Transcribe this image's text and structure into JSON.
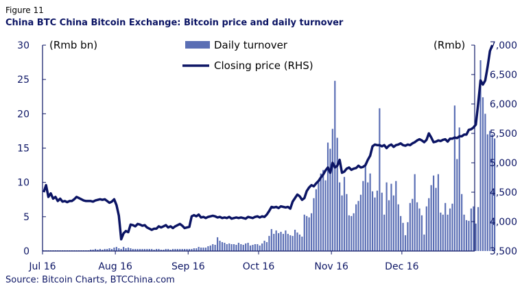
{
  "figure_label": "Figure 11",
  "title": "China BTC China Bitcoin Exchange: Bitcoin price and daily turnover",
  "source": "Source: Bitcoin Charts, BTCChina.com",
  "colors": {
    "bar": "#5a6eb4",
    "line": "#0b1464",
    "axis": "#0b1464"
  },
  "chart_data": {
    "type": "bar",
    "left_axis": {
      "unit_label": "(Rmb bn)",
      "ylim": [
        0,
        30
      ],
      "ticks": [
        0,
        5,
        10,
        15,
        20,
        25,
        30
      ],
      "tick_labels": [
        "0",
        "5",
        "10",
        "15",
        "20",
        "25",
        "30"
      ]
    },
    "right_axis": {
      "unit_label": "(Rmb)",
      "ylim": [
        3500,
        7000
      ],
      "ticks": [
        3500,
        4000,
        4500,
        5000,
        5500,
        6000,
        6500,
        7000
      ],
      "tick_labels": [
        "3,500",
        "4,000",
        "4,500",
        "5,000",
        "5,500",
        "6,000",
        "6,500",
        "7,000"
      ]
    },
    "x_axis": {
      "month_labels": [
        "Jul 16",
        "Aug 16",
        "Sep 16",
        "Oct 16",
        "Nov 16",
        "Dec 16"
      ],
      "month_start_day_index": [
        0,
        31,
        62,
        92,
        123,
        153
      ],
      "num_days": 184
    },
    "legend": {
      "placement": "top-center",
      "items": [
        "Daily turnover",
        "Closing price (RHS)"
      ]
    },
    "series": [
      {
        "name": "Daily turnover",
        "type": "bar",
        "axis": "left",
        "values": [
          0.1,
          0.1,
          0.1,
          0.1,
          0.1,
          0.1,
          0.1,
          0.1,
          0.1,
          0.1,
          0.1,
          0.1,
          0.1,
          0.1,
          0.1,
          0.1,
          0.1,
          0.1,
          0.1,
          0.1,
          0.2,
          0.2,
          0.3,
          0.2,
          0.3,
          0.2,
          0.3,
          0.3,
          0.4,
          0.3,
          0.5,
          0.6,
          0.4,
          0.3,
          0.6,
          0.4,
          0.5,
          0.4,
          0.3,
          0.3,
          0.3,
          0.3,
          0.3,
          0.3,
          0.3,
          0.3,
          0.3,
          0.2,
          0.3,
          0.3,
          0.2,
          0.2,
          0.3,
          0.3,
          0.2,
          0.3,
          0.3,
          0.3,
          0.3,
          0.3,
          0.3,
          0.3,
          0.3,
          0.3,
          0.4,
          0.4,
          0.6,
          0.5,
          0.5,
          0.5,
          0.7,
          0.8,
          1.0,
          0.9,
          2.0,
          1.5,
          1.3,
          1.2,
          1.0,
          1.1,
          1.0,
          1.0,
          0.9,
          1.2,
          1.0,
          0.9,
          1.1,
          1.2,
          0.8,
          0.9,
          1.0,
          1.0,
          0.8,
          1.1,
          1.5,
          1.3,
          2.2,
          3.2,
          2.5,
          3.0,
          2.6,
          2.8,
          2.5,
          3.0,
          2.5,
          2.3,
          2.2,
          3.1,
          2.7,
          2.4,
          2.1,
          5.3,
          5.1,
          4.9,
          5.5,
          7.7,
          9.0,
          10.0,
          11.3,
          11.8,
          10.3,
          15.8,
          14.9,
          17.8,
          24.8,
          16.5,
          10.0,
          8.1,
          10.8,
          8.3,
          5.2,
          5.1,
          5.5,
          6.8,
          7.3,
          8.2,
          10.2,
          12.8,
          10.0,
          11.3,
          8.7,
          7.8,
          8.8,
          20.8,
          8.5,
          5.3,
          10.0,
          7.4,
          9.8,
          8.1,
          10.2,
          6.8,
          5.1,
          4.1,
          2.3,
          4.2,
          7.0,
          7.6,
          11.2,
          7.1,
          6.2,
          5.2,
          2.4,
          6.5,
          7.7,
          9.6,
          11.0,
          9.2,
          11.2,
          5.6,
          5.3,
          7.0,
          5.3,
          6.2,
          6.9,
          21.2,
          13.4,
          18.0,
          8.3,
          5.3,
          4.5,
          4.4,
          6.2,
          6.5,
          4.0,
          6.4,
          27.8,
          22.4,
          20.0,
          17.0,
          17.5,
          17.0,
          16.4
        ]
      },
      {
        "name": "Closing price (RHS)",
        "type": "line",
        "axis": "right",
        "values": [
          4500,
          4620,
          4420,
          4480,
          4390,
          4420,
          4350,
          4390,
          4340,
          4350,
          4330,
          4350,
          4350,
          4380,
          4420,
          4400,
          4380,
          4360,
          4350,
          4350,
          4350,
          4340,
          4360,
          4370,
          4380,
          4370,
          4380,
          4350,
          4320,
          4340,
          4380,
          4280,
          4100,
          3700,
          3800,
          3840,
          3820,
          3950,
          3940,
          3920,
          3960,
          3950,
          3930,
          3940,
          3900,
          3880,
          3860,
          3880,
          3880,
          3920,
          3900,
          3920,
          3940,
          3900,
          3920,
          3890,
          3920,
          3940,
          3960,
          3930,
          3890,
          3900,
          3910,
          4090,
          4110,
          4090,
          4120,
          4070,
          4080,
          4060,
          4080,
          4090,
          4100,
          4090,
          4070,
          4080,
          4060,
          4070,
          4060,
          4080,
          4050,
          4060,
          4070,
          4060,
          4070,
          4060,
          4050,
          4080,
          4070,
          4060,
          4080,
          4090,
          4070,
          4090,
          4080,
          4120,
          4180,
          4250,
          4240,
          4250,
          4230,
          4260,
          4250,
          4240,
          4250,
          4220,
          4340,
          4400,
          4460,
          4430,
          4370,
          4400,
          4520,
          4580,
          4620,
          4600,
          4650,
          4690,
          4750,
          4800,
          4870,
          4920,
          4830,
          5000,
          4920,
          4950,
          5050,
          4830,
          4850,
          4900,
          4920,
          4880,
          4900,
          4910,
          4950,
          4920,
          4930,
          4960,
          5050,
          5120,
          5280,
          5310,
          5300,
          5300,
          5280,
          5300,
          5250,
          5290,
          5310,
          5270,
          5300,
          5310,
          5330,
          5300,
          5290,
          5310,
          5300,
          5330,
          5350,
          5380,
          5400,
          5380,
          5350,
          5390,
          5500,
          5430,
          5350,
          5360,
          5380,
          5370,
          5390,
          5400,
          5360,
          5410,
          5410,
          5430,
          5420,
          5450,
          5450,
          5480,
          5480,
          5560,
          5570,
          5600,
          5650,
          6010,
          6400,
          6330,
          6400,
          6630,
          6900,
          7000
        ]
      }
    ]
  }
}
